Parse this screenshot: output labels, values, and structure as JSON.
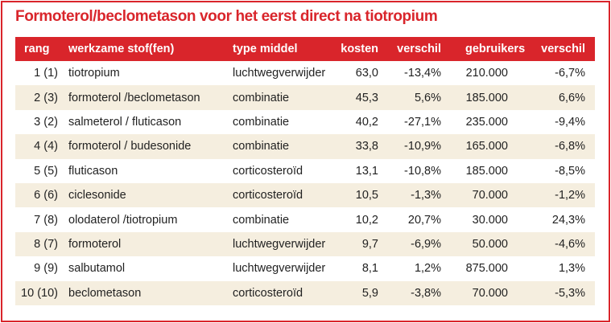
{
  "title": "Formoterol/beclometason voor het eerst direct na tiotropium",
  "table": {
    "headers": [
      "rang",
      "werkzame stof(fen)",
      "type middel",
      "kosten",
      "verschil",
      "gebruikers",
      "verschil"
    ],
    "rows": [
      [
        "1 (1)",
        "tiotropium",
        "luchtwegverwijder",
        "63,0",
        "-13,4%",
        "210.000",
        "-6,7%"
      ],
      [
        "2 (3)",
        "formoterol /beclometason",
        "combinatie",
        "45,3",
        "5,6%",
        "185.000",
        "6,6%"
      ],
      [
        "3 (2)",
        "salmeterol / fluticason",
        "combinatie",
        "40,2",
        "-27,1%",
        "235.000",
        "-9,4%"
      ],
      [
        "4 (4)",
        "formoterol / budesonide",
        "combinatie",
        "33,8",
        "-10,9%",
        "165.000",
        "-6,8%"
      ],
      [
        "5 (5)",
        "fluticason",
        "corticosteroïd",
        "13,1",
        "-10,8%",
        "185.000",
        "-8,5%"
      ],
      [
        "6 (6)",
        "ciclesonide",
        "corticosteroïd",
        "10,5",
        "-1,3%",
        "70.000",
        "-1,2%"
      ],
      [
        "7 (8)",
        "olodaterol /tiotropium",
        "combinatie",
        "10,2",
        "20,7%",
        "30.000",
        "24,3%"
      ],
      [
        "8 (7)",
        "formoterol",
        "luchtwegverwijder",
        "9,7",
        "-6,9%",
        "50.000",
        "-4,6%"
      ],
      [
        "9 (9)",
        "salbutamol",
        "luchtwegverwijder",
        "8,1",
        "1,2%",
        "875.000",
        "1,3%"
      ],
      [
        "10 (10)",
        "beclometason",
        "corticosteroïd",
        "5,9",
        "-3,8%",
        "70.000",
        "-5,3%"
      ]
    ]
  }
}
